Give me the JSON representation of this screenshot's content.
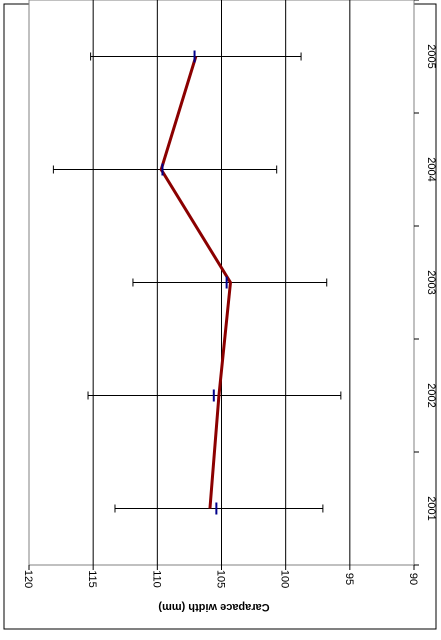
{
  "chart_data": {
    "type": "line",
    "orientation": "rotated-90",
    "categories": [
      "2001",
      "2002",
      "2003",
      "2004",
      "2005"
    ],
    "series": [
      {
        "values": [
          105.9,
          105.2,
          104.3,
          109.7,
          107.0
        ],
        "color": "#8B0000"
      }
    ],
    "markers": {
      "values": [
        105.4,
        105.6,
        104.6,
        109.6,
        107.1
      ],
      "color": "#00008B"
    },
    "error_bars": {
      "upper": [
        113.3,
        115.4,
        111.9,
        118.1,
        115.2
      ],
      "lower": [
        97.1,
        95.7,
        96.8,
        100.7,
        98.8
      ],
      "color": "#000000"
    },
    "ylabel": "Carapace width (mm)",
    "xlabel": "",
    "title": "",
    "ylim": [
      90,
      120
    ],
    "y_ticks": [
      "90",
      "95",
      "100",
      "105",
      "110",
      "115",
      "120"
    ],
    "grid": true,
    "legend": "none"
  }
}
